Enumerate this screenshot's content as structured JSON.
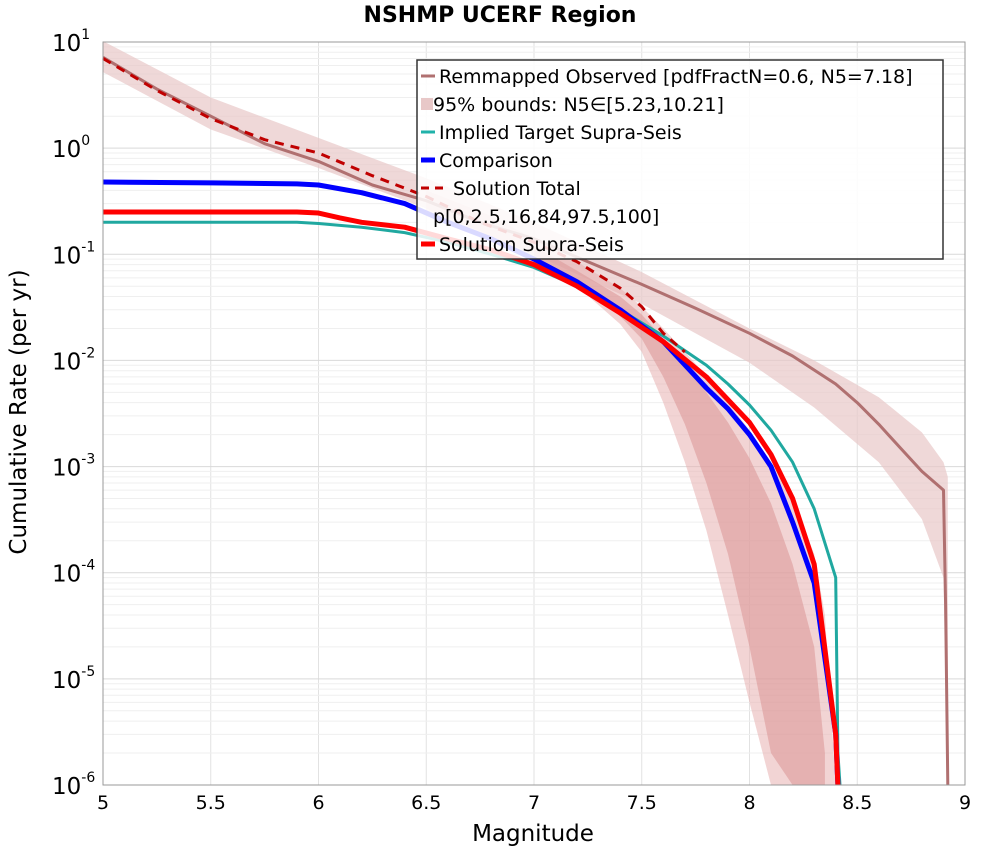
{
  "chart_data": {
    "type": "line",
    "title": "NSHMP UCERF Region",
    "xlabel": "Magnitude",
    "ylabel": "Cumulative Rate (per yr)",
    "xlim": [
      5,
      9
    ],
    "ylim": [
      1e-06,
      10
    ],
    "yscale": "log",
    "grid": true,
    "legend_position": "top-right",
    "x_ticks": [
      "5",
      "5.5",
      "6",
      "6.5",
      "7",
      "7.5",
      "8",
      "8.5",
      "9"
    ],
    "y_ticks": [
      {
        "base": "10",
        "exp": "-6"
      },
      {
        "base": "10",
        "exp": "-5"
      },
      {
        "base": "10",
        "exp": "-4"
      },
      {
        "base": "10",
        "exp": "-3"
      },
      {
        "base": "10",
        "exp": "-2"
      },
      {
        "base": "10",
        "exp": "-1"
      },
      {
        "base": "10",
        "exp": "0"
      },
      {
        "base": "10",
        "exp": "1"
      }
    ],
    "legend": [
      {
        "label": "Remmapped Observed [pdfFractN=0.6, N5=7.18]",
        "style": "line",
        "color": "#b07070"
      },
      {
        "label": "95% bounds: N5∈[5.23,10.21]",
        "style": "band",
        "color": "#e8c8c8"
      },
      {
        "label": "Implied Target Supra-Seis",
        "style": "line",
        "color": "#20b2aa"
      },
      {
        "label": "Comparison",
        "style": "thick",
        "color": "#0000ff"
      },
      {
        "label": "Solution Total",
        "style": "dashed",
        "color": "#c00000"
      },
      {
        "label": "p[0,2.5,16,84,97.5,100]",
        "style": "none",
        "color": "#e0a0a0"
      },
      {
        "label": "Solution Supra-Seis",
        "style": "thick",
        "color": "#ff0000"
      }
    ],
    "bands": [
      {
        "name": "95% bounds",
        "color": "#e8c8c8",
        "opacity": 0.7,
        "x": [
          5.0,
          5.5,
          6.0,
          6.5,
          7.0,
          7.5,
          8.0,
          8.3,
          8.6,
          8.8,
          8.9,
          8.92
        ],
        "lower": [
          5.2,
          1.5,
          0.65,
          0.27,
          0.1,
          0.034,
          0.0095,
          0.0036,
          0.0011,
          0.00032,
          9e-05,
          1e-06
        ],
        "upper": [
          10.2,
          3.0,
          1.25,
          0.52,
          0.2,
          0.068,
          0.02,
          0.01,
          0.0045,
          0.0021,
          0.0011,
          0.0008
        ]
      },
      {
        "name": "p0-100",
        "color": "#e8b0b0",
        "opacity": 0.55,
        "x": [
          6.5,
          6.8,
          7.0,
          7.2,
          7.4,
          7.5,
          7.6,
          7.7,
          7.8,
          7.9,
          8.0,
          8.1,
          8.2,
          8.3,
          8.35,
          8.4
        ],
        "lower": [
          0.25,
          0.13,
          0.085,
          0.05,
          0.022,
          0.012,
          0.004,
          0.0011,
          0.00025,
          4e-05,
          6e-06,
          1e-06,
          1e-06,
          1e-06,
          1e-06,
          1e-06
        ],
        "upper": [
          0.4,
          0.23,
          0.14,
          0.085,
          0.048,
          0.032,
          0.02,
          0.012,
          0.0072,
          0.004,
          0.0022,
          0.0011,
          0.0005,
          0.00015,
          4e-05,
          1e-06
        ]
      },
      {
        "name": "p16-84",
        "color": "#dc9a9a",
        "opacity": 0.6,
        "x": [
          7.0,
          7.2,
          7.4,
          7.5,
          7.6,
          7.7,
          7.8,
          7.9,
          8.0,
          8.1,
          8.2,
          8.3,
          8.35
        ],
        "lower": [
          0.095,
          0.055,
          0.026,
          0.016,
          0.007,
          0.0025,
          0.0007,
          0.00015,
          2e-05,
          2e-06,
          1e-06,
          1e-06,
          1e-06
        ],
        "upper": [
          0.12,
          0.07,
          0.04,
          0.027,
          0.016,
          0.009,
          0.005,
          0.0026,
          0.0012,
          0.00045,
          0.00012,
          2e-05,
          2e-06
        ]
      }
    ],
    "series": [
      {
        "name": "Remmapped Observed [pdfFractN=0.6, N5=7.18]",
        "color": "#b07070",
        "width": 3,
        "dash": "",
        "x": [
          5.0,
          5.25,
          5.5,
          5.75,
          6.0,
          6.25,
          6.5,
          6.75,
          7.0,
          7.25,
          7.5,
          7.75,
          8.0,
          8.2,
          8.4,
          8.5,
          8.6,
          8.7,
          8.8,
          8.9,
          8.91,
          8.92
        ],
        "y": [
          7.18,
          3.6,
          2.0,
          1.1,
          0.75,
          0.45,
          0.32,
          0.2,
          0.14,
          0.085,
          0.052,
          0.031,
          0.018,
          0.011,
          0.006,
          0.004,
          0.0025,
          0.0015,
          0.0009,
          0.0006,
          5e-05,
          1e-06
        ]
      },
      {
        "name": "Implied Target Supra-Seis",
        "color": "#20a8a0",
        "width": 3,
        "dash": "",
        "x": [
          5.0,
          5.5,
          5.9,
          6.0,
          6.2,
          6.4,
          6.6,
          6.8,
          7.0,
          7.2,
          7.4,
          7.6,
          7.8,
          7.9,
          8.0,
          8.1,
          8.2,
          8.3,
          8.4,
          8.41,
          8.42
        ],
        "y": [
          0.2,
          0.2,
          0.2,
          0.195,
          0.18,
          0.16,
          0.13,
          0.1,
          0.075,
          0.05,
          0.03,
          0.017,
          0.009,
          0.006,
          0.0038,
          0.0022,
          0.0011,
          0.0004,
          9e-05,
          2e-06,
          1e-06
        ]
      },
      {
        "name": "Comparison",
        "color": "#0000ff",
        "width": 5,
        "dash": "",
        "x": [
          5.0,
          5.5,
          5.9,
          6.0,
          6.2,
          6.4,
          6.6,
          6.8,
          7.0,
          7.2,
          7.4,
          7.6,
          7.8,
          7.9,
          8.0,
          8.1,
          8.2,
          8.3,
          8.4,
          8.41
        ],
        "y": [
          0.48,
          0.47,
          0.46,
          0.45,
          0.38,
          0.3,
          0.2,
          0.14,
          0.09,
          0.055,
          0.03,
          0.015,
          0.0055,
          0.0035,
          0.002,
          0.001,
          0.0003,
          8e-05,
          3e-06,
          1e-06
        ]
      },
      {
        "name": "Solution Total",
        "color": "#c00000",
        "width": 3,
        "dash": "9,7",
        "x": [
          5.0,
          5.25,
          5.5,
          5.75,
          6.0,
          6.25,
          6.5,
          6.75,
          7.0,
          7.2,
          7.4,
          7.5,
          7.6,
          7.7
        ],
        "y": [
          7.0,
          3.5,
          1.9,
          1.2,
          0.9,
          0.55,
          0.35,
          0.2,
          0.13,
          0.085,
          0.048,
          0.032,
          0.018,
          0.012
        ]
      },
      {
        "name": "Solution Supra-Seis",
        "color": "#ff0000",
        "width": 5,
        "dash": "",
        "x": [
          5.0,
          5.5,
          5.9,
          6.0,
          6.1,
          6.2,
          6.4,
          6.6,
          6.8,
          7.0,
          7.2,
          7.4,
          7.6,
          7.8,
          8.0,
          8.1,
          8.2,
          8.3,
          8.4,
          8.41
        ],
        "y": [
          0.25,
          0.25,
          0.25,
          0.245,
          0.22,
          0.2,
          0.18,
          0.14,
          0.11,
          0.08,
          0.05,
          0.028,
          0.015,
          0.007,
          0.0026,
          0.0013,
          0.0005,
          0.00012,
          3e-06,
          1e-06
        ]
      }
    ]
  }
}
